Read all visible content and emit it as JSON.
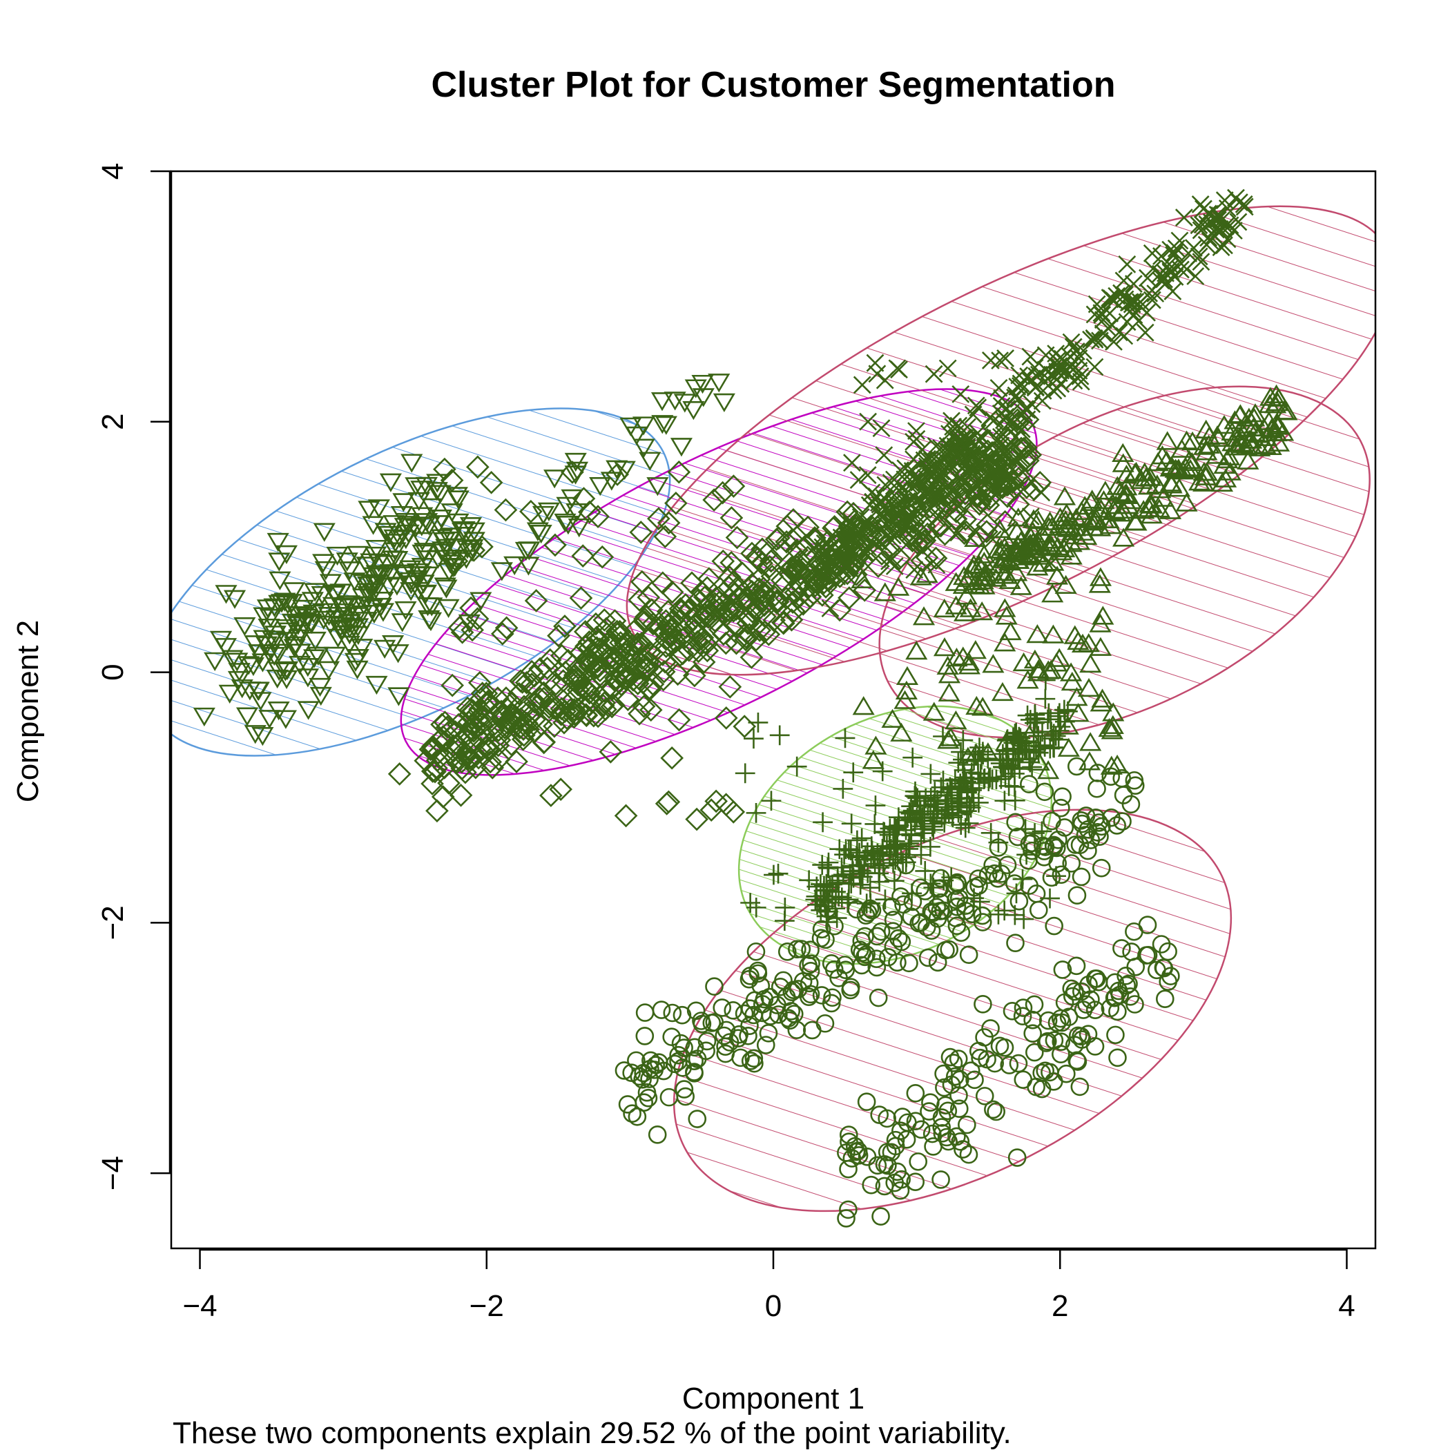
{
  "chart_data": {
    "type": "scatter",
    "title": "Cluster Plot for Customer Segmentation",
    "xlabel": "Component 1",
    "ylabel": "Component 2",
    "subtitle": "These two components explain 29.52 % of the point variability.",
    "xlim": [
      -4.2,
      4.2
    ],
    "ylim": [
      -4.6,
      4.0
    ],
    "x_ticks": [
      -4,
      -2,
      0,
      2,
      4
    ],
    "y_ticks": [
      -4,
      -2,
      0,
      2,
      4
    ],
    "point_color": "#3b6416",
    "clusters": [
      {
        "id": 1,
        "marker": "triangle-down",
        "ellipse": {
          "cx": -2.55,
          "cy": 0.72,
          "rx": 2.0,
          "ry": 0.9,
          "angle_deg": 27,
          "color": "#5b9bdc"
        },
        "groups": [
          {
            "x": [
              -3.7,
              -2.2
            ],
            "y": [
              0.0,
              1.2
            ],
            "n": 260,
            "spread": 0.28,
            "trend": 0.5
          },
          {
            "x": [
              -2.2,
              -0.4
            ],
            "y": [
              0.6,
              2.3
            ],
            "n": 45,
            "spread": 0.2,
            "trend": 0.95
          }
        ]
      },
      {
        "id": 2,
        "marker": "diamond",
        "ellipse": {
          "cx": -0.38,
          "cy": 0.72,
          "rx": 2.45,
          "ry": 0.85,
          "angle_deg": 27,
          "color": "#c000c0"
        },
        "groups": [
          {
            "x": [
              -2.4,
              1.8
            ],
            "y": [
              -0.7,
              1.7
            ],
            "n": 650,
            "spread": 0.18,
            "trend": 0.57
          },
          {
            "x": [
              -2.3,
              -0.2
            ],
            "y": [
              -1.2,
              1.7
            ],
            "n": 90,
            "spread": 0.45,
            "trend": 0.0
          }
        ]
      },
      {
        "id": 3,
        "marker": "cross",
        "ellipse": {
          "cx": 1.65,
          "cy": 1.85,
          "rx": 2.95,
          "ry": 1.05,
          "angle_deg": 27,
          "color": "#c24a6e"
        },
        "groups": [
          {
            "x": [
              0.3,
              3.25
            ],
            "y": [
              0.8,
              3.7
            ],
            "n": 330,
            "spread": 0.12,
            "trend": 0.95
          },
          {
            "x": [
              0.5,
              2.2
            ],
            "y": [
              0.8,
              2.6
            ],
            "n": 60,
            "spread": 0.35,
            "trend": 0.0
          }
        ]
      },
      {
        "id": 4,
        "marker": "triangle-up",
        "ellipse": {
          "cx": 2.45,
          "cy": 0.88,
          "rx": 1.85,
          "ry": 1.0,
          "angle_deg": 27,
          "color": "#c24a6e"
        },
        "groups": [
          {
            "x": [
              1.3,
              3.6
            ],
            "y": [
              0.7,
              2.05
            ],
            "n": 240,
            "spread": 0.12,
            "trend": 0.6
          },
          {
            "x": [
              0.6,
              2.4
            ],
            "y": [
              -0.8,
              0.9
            ],
            "n": 90,
            "spread": 0.3,
            "trend": 0.0
          }
        ]
      },
      {
        "id": 5,
        "marker": "plus",
        "ellipse": {
          "cx": 0.85,
          "cy": -1.3,
          "rx": 1.15,
          "ry": 0.82,
          "angle_deg": 27,
          "color": "#8ccc5a"
        },
        "groups": [
          {
            "x": [
              0.3,
              2.0
            ],
            "y": [
              -1.8,
              -0.4
            ],
            "n": 300,
            "spread": 0.12,
            "trend": 0.8
          },
          {
            "x": [
              -0.4,
              2.1
            ],
            "y": [
              -2.0,
              -0.4
            ],
            "n": 70,
            "spread": 0.35,
            "trend": 0.0
          }
        ]
      },
      {
        "id": 6,
        "marker": "circle",
        "ellipse": {
          "cx": 1.25,
          "cy": -2.7,
          "rx": 2.1,
          "ry": 1.15,
          "angle_deg": 27,
          "color": "#c24a6e"
        },
        "groups": [
          {
            "x": [
              -1.0,
              2.5
            ],
            "y": [
              -3.3,
              -1.0
            ],
            "n": 260,
            "spread": 0.2,
            "trend": 0.65
          },
          {
            "x": [
              0.5,
              2.8
            ],
            "y": [
              -4.0,
              -2.3
            ],
            "n": 160,
            "spread": 0.25,
            "trend": 0.6
          }
        ]
      }
    ]
  }
}
